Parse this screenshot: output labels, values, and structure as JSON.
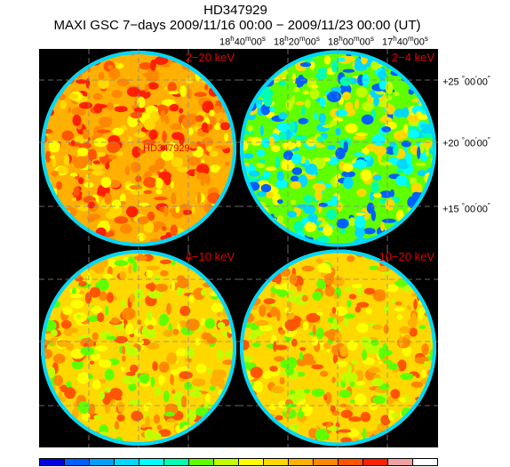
{
  "header": {
    "title": "HD347929",
    "subtitle": "MAXI GSC 7−days 2009/11/16 00:00 − 2009/11/23 00:00 (UT)"
  },
  "ra_ticks": [
    {
      "h": "18",
      "m": "40",
      "s": "00"
    },
    {
      "h": "18",
      "m": "20",
      "s": "00"
    },
    {
      "h": "18",
      "m": "00",
      "s": "00"
    },
    {
      "h": "17",
      "m": "40",
      "s": "00"
    }
  ],
  "dec_ticks": [
    {
      "deg": "+25",
      "min": "00",
      "sec": "00"
    },
    {
      "deg": "+20",
      "min": "00",
      "sec": "00"
    },
    {
      "deg": "+15",
      "min": "00",
      "sec": "00"
    }
  ],
  "panels": [
    {
      "band": "2−20 keV",
      "source_label": "HD347929",
      "tone": "hot"
    },
    {
      "band": "2−4 keV",
      "source_label": "",
      "tone": "cool"
    },
    {
      "band": "4−10 keV",
      "source_label": "",
      "tone": "warm"
    },
    {
      "band": "10−20 keV",
      "source_label": "",
      "tone": "warm"
    }
  ],
  "colorbar": {
    "colors": [
      "#0000e0",
      "#0060ff",
      "#00a0ff",
      "#00d8ff",
      "#00ffff",
      "#00ffb0",
      "#60ff00",
      "#c0ff00",
      "#ffff00",
      "#ffd800",
      "#ffb000",
      "#ff8800",
      "#ff5500",
      "#ff2000",
      "#f0a0a0",
      "#ffffff"
    ]
  }
}
